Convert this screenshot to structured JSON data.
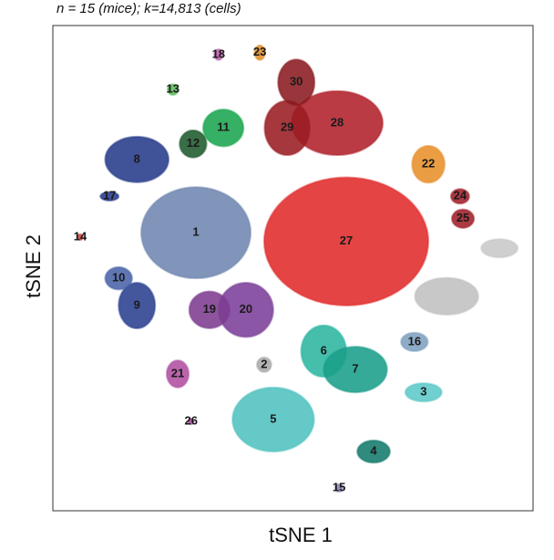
{
  "chart_data": {
    "type": "cluster-map",
    "title": "n = 15 (mice); k=14,813 (cells)",
    "x_label": "tSNE 1",
    "y_label": "tSNE 2",
    "xlim": [
      0,
      100
    ],
    "ylim": [
      0,
      100
    ],
    "clusters": [
      {
        "name": "1",
        "color": "#6f86b0",
        "x": 29.8,
        "y": 57.3,
        "spread": [
          11.4,
          9.4
        ]
      },
      {
        "name": "27",
        "color": "#e02a2a",
        "x": 61.1,
        "y": 55.5,
        "spread": [
          17.1,
          13.2
        ]
      },
      {
        "name": "28",
        "color": "#b0202a",
        "x": 59.2,
        "y": 79.9,
        "spread": [
          9.5,
          6.6
        ]
      },
      {
        "name": "29",
        "color": "#9a1c22",
        "x": 48.8,
        "y": 78.9,
        "spread": [
          4.7,
          5.6
        ]
      },
      {
        "name": "30",
        "color": "#8a1a20",
        "x": 50.7,
        "y": 88.3,
        "spread": [
          3.8,
          4.7
        ]
      },
      {
        "name": "20",
        "color": "#7b3f98",
        "x": 40.2,
        "y": 41.4,
        "spread": [
          5.7,
          5.6
        ]
      },
      {
        "name": "19",
        "color": "#7d3c8f",
        "x": 32.6,
        "y": 41.4,
        "spread": [
          4.2,
          3.8
        ]
      },
      {
        "name": "6",
        "color": "#2cb5a0",
        "x": 56.4,
        "y": 32.9,
        "spread": [
          4.7,
          5.3
        ]
      },
      {
        "name": "7",
        "color": "#1a9e8a",
        "x": 63.0,
        "y": 29.1,
        "spread": [
          6.6,
          4.7
        ]
      },
      {
        "name": "5",
        "color": "#4fc1bf",
        "x": 45.9,
        "y": 18.8,
        "spread": [
          8.5,
          6.6
        ]
      },
      {
        "name": "3",
        "color": "#5cc8c8",
        "x": 77.2,
        "y": 24.4,
        "spread": [
          3.8,
          1.9
        ]
      },
      {
        "name": "4",
        "color": "#137a6c",
        "x": 66.8,
        "y": 12.2,
        "spread": [
          3.4,
          2.3
        ]
      },
      {
        "name": "16",
        "color": "#7e9fbf",
        "x": 75.3,
        "y": 34.8,
        "spread": [
          2.8,
          1.9
        ]
      },
      {
        "name": "15",
        "color": "#8888bb",
        "x": 59.6,
        "y": 4.7,
        "spread": [
          0.8,
          0.8
        ]
      },
      {
        "name": "21",
        "color": "#b04fa0",
        "x": 26.0,
        "y": 28.2,
        "spread": [
          2.3,
          2.8
        ]
      },
      {
        "name": "26",
        "color": "#b04fa0",
        "x": 28.8,
        "y": 18.4,
        "spread": [
          0.6,
          0.6
        ]
      },
      {
        "name": "2",
        "color": "#aaaaaa",
        "x": 44.0,
        "y": 30.1,
        "spread": [
          1.5,
          1.5
        ]
      },
      {
        "name": null,
        "color": "#c8c8c8",
        "x": 93.0,
        "y": 54.1,
        "spread": [
          3.8,
          1.9
        ]
      },
      {
        "name": null,
        "color": "#c0c0c0",
        "x": 82.0,
        "y": 44.2,
        "spread": [
          6.6,
          3.8
        ]
      },
      {
        "name": "22",
        "color": "#e8902a",
        "x": 78.2,
        "y": 71.4,
        "spread": [
          3.4,
          3.8
        ]
      },
      {
        "name": "24",
        "color": "#a01f2a",
        "x": 84.8,
        "y": 64.8,
        "spread": [
          1.9,
          1.5
        ]
      },
      {
        "name": "25",
        "color": "#a01f2a",
        "x": 85.4,
        "y": 60.2,
        "spread": [
          2.3,
          1.9
        ]
      },
      {
        "name": "8",
        "color": "#263a8a",
        "x": 17.5,
        "y": 72.4,
        "spread": [
          6.6,
          4.7
        ]
      },
      {
        "name": "17",
        "color": "#263a8a",
        "x": 11.8,
        "y": 64.8,
        "spread": [
          1.9,
          0.9
        ]
      },
      {
        "name": "9",
        "color": "#2a3f8e",
        "x": 17.5,
        "y": 42.3,
        "spread": [
          3.8,
          4.7
        ]
      },
      {
        "name": "10",
        "color": "#4a63a8",
        "x": 13.7,
        "y": 47.9,
        "spread": [
          2.8,
          2.3
        ]
      },
      {
        "name": "11",
        "color": "#1aa550",
        "x": 35.5,
        "y": 78.9,
        "spread": [
          4.2,
          3.8
        ]
      },
      {
        "name": "12",
        "color": "#1f5a2e",
        "x": 29.2,
        "y": 75.6,
        "spread": [
          2.8,
          2.8
        ]
      },
      {
        "name": "13",
        "color": "#5cb85c",
        "x": 25.0,
        "y": 86.8,
        "spread": [
          1.1,
          1.1
        ]
      },
      {
        "name": "14",
        "color": "#cc4444",
        "x": 5.7,
        "y": 56.4,
        "spread": [
          0.6,
          0.6
        ]
      },
      {
        "name": "18",
        "color": "#c060b0",
        "x": 34.5,
        "y": 94.0,
        "spread": [
          0.9,
          1.1
        ]
      },
      {
        "name": "23",
        "color": "#e0902a",
        "x": 43.1,
        "y": 94.4,
        "spread": [
          1.1,
          1.5
        ]
      }
    ]
  }
}
